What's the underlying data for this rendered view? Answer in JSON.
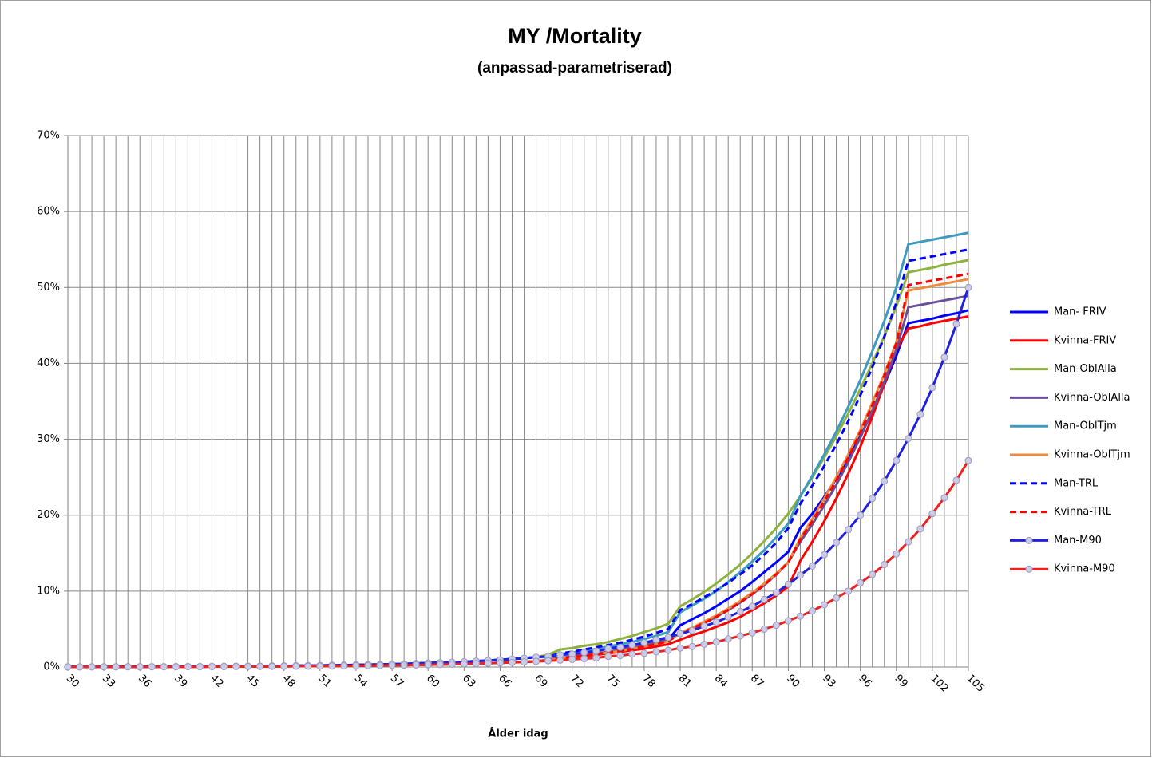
{
  "chart_data": {
    "type": "line",
    "title": "MY /Mortality",
    "subtitle": "(anpassad-parametriserad)",
    "x_label": "Ålder idag",
    "x": [
      30,
      31,
      32,
      33,
      34,
      35,
      36,
      37,
      38,
      39,
      40,
      41,
      42,
      43,
      44,
      45,
      46,
      47,
      48,
      49,
      50,
      51,
      52,
      53,
      54,
      55,
      56,
      57,
      58,
      59,
      60,
      61,
      62,
      63,
      64,
      65,
      66,
      67,
      68,
      69,
      70,
      71,
      72,
      73,
      74,
      75,
      76,
      77,
      78,
      79,
      80,
      81,
      82,
      83,
      84,
      85,
      86,
      87,
      88,
      89,
      90,
      91,
      92,
      93,
      94,
      95,
      96,
      97,
      98,
      99,
      100,
      101,
      102,
      103,
      104,
      105
    ],
    "xlim": [
      30,
      105
    ],
    "xticks": [
      30,
      33,
      36,
      39,
      42,
      45,
      48,
      51,
      54,
      57,
      60,
      63,
      66,
      69,
      72,
      75,
      78,
      81,
      84,
      87,
      90,
      93,
      96,
      99,
      102,
      105
    ],
    "ylim": [
      0,
      70
    ],
    "yticks": [
      {
        "value": 0,
        "label": "0%"
      },
      {
        "value": 10,
        "label": "10%"
      },
      {
        "value": 20,
        "label": "20%"
      },
      {
        "value": 30,
        "label": "30%"
      },
      {
        "value": 40,
        "label": "40%"
      },
      {
        "value": 50,
        "label": "50%"
      },
      {
        "value": 60,
        "label": "60%"
      },
      {
        "value": 70,
        "label": "70%"
      }
    ],
    "grid": true,
    "legend": "right",
    "series": [
      {
        "name": "Man- FRIV",
        "color": "#0000ff",
        "style": "solid",
        "values": [
          0.02,
          0.02,
          0.03,
          0.03,
          0.03,
          0.04,
          0.04,
          0.05,
          0.05,
          0.06,
          0.07,
          0.07,
          0.08,
          0.09,
          0.1,
          0.11,
          0.12,
          0.14,
          0.15,
          0.17,
          0.19,
          0.21,
          0.23,
          0.25,
          0.28,
          0.31,
          0.34,
          0.38,
          0.42,
          0.47,
          0.52,
          0.57,
          0.63,
          0.7,
          0.78,
          0.86,
          0.95,
          1.05,
          1.16,
          1.3,
          1.5,
          1.7,
          1.9,
          2.1,
          2.3,
          2.5,
          2.7,
          2.9,
          3.1,
          3.3,
          3.6,
          5.5,
          6.3,
          7.1,
          8.0,
          9.0,
          10.0,
          11.2,
          12.5,
          13.8,
          15.2,
          18.3,
          20.2,
          22.4,
          24.8,
          27.5,
          30.4,
          33.6,
          37.2,
          41.0,
          45.3,
          45.6,
          45.9,
          46.3,
          46.6,
          47.0
        ]
      },
      {
        "name": "Kvinna-FRIV",
        "color": "#ff0000",
        "style": "solid",
        "values": [
          0.01,
          0.01,
          0.01,
          0.02,
          0.02,
          0.02,
          0.02,
          0.03,
          0.03,
          0.03,
          0.04,
          0.04,
          0.05,
          0.05,
          0.06,
          0.07,
          0.07,
          0.08,
          0.09,
          0.1,
          0.11,
          0.12,
          0.13,
          0.15,
          0.16,
          0.18,
          0.2,
          0.22,
          0.25,
          0.27,
          0.3,
          0.33,
          0.37,
          0.41,
          0.45,
          0.5,
          0.55,
          0.61,
          0.67,
          0.74,
          0.8,
          1.0,
          1.2,
          1.4,
          1.6,
          1.8,
          2.0,
          2.2,
          2.4,
          2.7,
          3.0,
          3.6,
          4.2,
          4.7,
          5.3,
          5.9,
          6.6,
          7.5,
          8.4,
          9.4,
          10.6,
          14.0,
          16.5,
          19.2,
          22.2,
          25.5,
          29.0,
          33.0,
          37.3,
          41.8,
          44.6,
          44.9,
          45.3,
          45.6,
          45.9,
          46.2
        ]
      },
      {
        "name": "Man-OblAlla",
        "color": "#8db33e",
        "style": "solid",
        "values": [
          0.02,
          0.02,
          0.03,
          0.03,
          0.03,
          0.04,
          0.04,
          0.05,
          0.05,
          0.06,
          0.07,
          0.07,
          0.08,
          0.09,
          0.1,
          0.11,
          0.12,
          0.14,
          0.15,
          0.17,
          0.19,
          0.21,
          0.23,
          0.25,
          0.28,
          0.31,
          0.34,
          0.38,
          0.42,
          0.47,
          0.52,
          0.57,
          0.63,
          0.7,
          0.78,
          0.86,
          0.95,
          1.05,
          1.16,
          1.3,
          1.6,
          2.3,
          2.5,
          2.8,
          3.0,
          3.3,
          3.7,
          4.1,
          4.6,
          5.1,
          5.7,
          8.0,
          8.9,
          9.9,
          11.0,
          12.2,
          13.5,
          15.0,
          16.6,
          18.3,
          20.2,
          22.5,
          25.0,
          27.6,
          30.4,
          33.4,
          36.6,
          40.0,
          43.6,
          47.5,
          52.0,
          52.3,
          52.6,
          53.0,
          53.3,
          53.6
        ]
      },
      {
        "name": "Kvinna-OblAlla",
        "color": "#6a4f96",
        "style": "solid",
        "values": [
          0.01,
          0.01,
          0.01,
          0.02,
          0.02,
          0.02,
          0.02,
          0.03,
          0.03,
          0.03,
          0.04,
          0.04,
          0.05,
          0.05,
          0.06,
          0.07,
          0.07,
          0.08,
          0.09,
          0.1,
          0.11,
          0.12,
          0.13,
          0.15,
          0.16,
          0.18,
          0.2,
          0.22,
          0.25,
          0.27,
          0.3,
          0.33,
          0.37,
          0.41,
          0.45,
          0.5,
          0.55,
          0.61,
          0.67,
          0.74,
          1.0,
          1.2,
          1.4,
          1.6,
          1.8,
          2.0,
          2.3,
          2.6,
          2.9,
          3.2,
          3.6,
          4.5,
          5.1,
          5.8,
          6.6,
          7.5,
          8.5,
          9.6,
          10.8,
          12.2,
          13.8,
          16.5,
          18.8,
          21.3,
          24.0,
          27.0,
          30.2,
          33.8,
          37.6,
          41.8,
          47.4,
          47.7,
          48.0,
          48.3,
          48.6,
          48.9
        ]
      },
      {
        "name": "Man-OblTjm",
        "color": "#3d9bbf",
        "style": "solid",
        "values": [
          0.02,
          0.02,
          0.03,
          0.03,
          0.03,
          0.04,
          0.04,
          0.05,
          0.05,
          0.06,
          0.07,
          0.07,
          0.08,
          0.09,
          0.1,
          0.11,
          0.12,
          0.14,
          0.15,
          0.17,
          0.19,
          0.21,
          0.23,
          0.25,
          0.28,
          0.31,
          0.34,
          0.38,
          0.42,
          0.47,
          0.52,
          0.57,
          0.63,
          0.7,
          0.78,
          0.86,
          0.95,
          1.05,
          1.16,
          1.3,
          1.3,
          1.7,
          1.9,
          2.1,
          2.4,
          2.7,
          3.0,
          3.3,
          3.7,
          4.1,
          4.6,
          7.2,
          8.1,
          9.0,
          10.0,
          11.2,
          12.5,
          13.9,
          15.4,
          17.1,
          18.9,
          22.5,
          25.2,
          28.0,
          31.0,
          34.3,
          37.8,
          41.6,
          45.6,
          50.0,
          55.7,
          56.0,
          56.3,
          56.6,
          56.9,
          57.2
        ]
      },
      {
        "name": "Kvinna-OblTjm",
        "color": "#ee8a3c",
        "style": "solid",
        "values": [
          0.01,
          0.01,
          0.01,
          0.02,
          0.02,
          0.02,
          0.02,
          0.03,
          0.03,
          0.03,
          0.04,
          0.04,
          0.05,
          0.05,
          0.06,
          0.07,
          0.07,
          0.08,
          0.09,
          0.1,
          0.11,
          0.12,
          0.13,
          0.15,
          0.16,
          0.18,
          0.2,
          0.22,
          0.25,
          0.27,
          0.3,
          0.33,
          0.37,
          0.41,
          0.45,
          0.5,
          0.55,
          0.61,
          0.67,
          0.74,
          0.9,
          1.1,
          1.3,
          1.5,
          1.7,
          1.9,
          2.1,
          2.4,
          2.7,
          3.0,
          3.4,
          4.5,
          5.2,
          6.0,
          6.8,
          7.7,
          8.7,
          9.8,
          11.0,
          12.3,
          13.8,
          17.0,
          19.5,
          22.2,
          25.0,
          28.0,
          31.2,
          34.8,
          38.6,
          42.8,
          49.6,
          49.9,
          50.2,
          50.5,
          50.8,
          51.1
        ]
      },
      {
        "name": "Man-TRL",
        "color": "#0000ff",
        "style": "dashed",
        "values": [
          0.02,
          0.02,
          0.03,
          0.03,
          0.03,
          0.04,
          0.04,
          0.05,
          0.05,
          0.06,
          0.07,
          0.07,
          0.08,
          0.09,
          0.1,
          0.11,
          0.12,
          0.14,
          0.15,
          0.17,
          0.19,
          0.21,
          0.23,
          0.25,
          0.28,
          0.31,
          0.34,
          0.38,
          0.42,
          0.47,
          0.52,
          0.57,
          0.63,
          0.7,
          0.78,
          0.86,
          0.95,
          1.05,
          1.16,
          1.3,
          1.4,
          1.8,
          2.0,
          2.3,
          2.6,
          2.9,
          3.2,
          3.6,
          4.0,
          4.5,
          5.0,
          7.5,
          8.3,
          9.2,
          10.1,
          11.1,
          12.2,
          13.4,
          14.8,
          16.4,
          18.3,
          21.5,
          23.9,
          26.5,
          29.3,
          32.4,
          35.8,
          39.5,
          43.5,
          48.0,
          53.5,
          53.8,
          54.1,
          54.4,
          54.7,
          55.0
        ]
      },
      {
        "name": "Kvinna-TRL",
        "color": "#ff0000",
        "style": "dashed",
        "values": [
          0.01,
          0.01,
          0.01,
          0.02,
          0.02,
          0.02,
          0.02,
          0.03,
          0.03,
          0.03,
          0.04,
          0.04,
          0.05,
          0.05,
          0.06,
          0.07,
          0.07,
          0.08,
          0.09,
          0.1,
          0.11,
          0.12,
          0.13,
          0.15,
          0.16,
          0.18,
          0.2,
          0.22,
          0.25,
          0.27,
          0.3,
          0.33,
          0.37,
          0.41,
          0.45,
          0.5,
          0.55,
          0.61,
          0.67,
          0.74,
          0.9,
          1.1,
          1.3,
          1.5,
          1.7,
          1.9,
          2.1,
          2.4,
          2.7,
          3.0,
          3.4,
          4.4,
          5.1,
          5.8,
          6.6,
          7.5,
          8.5,
          9.6,
          10.8,
          12.2,
          13.8,
          16.8,
          19.2,
          21.8,
          24.6,
          27.6,
          30.9,
          34.5,
          38.4,
          42.6,
          50.3,
          50.6,
          50.9,
          51.2,
          51.5,
          51.8
        ]
      },
      {
        "name": "Man-M90",
        "color": "#2020e0",
        "style": "solid",
        "marker": "circle",
        "values": [
          0.02,
          0.02,
          0.03,
          0.03,
          0.03,
          0.04,
          0.04,
          0.05,
          0.05,
          0.06,
          0.07,
          0.07,
          0.08,
          0.09,
          0.1,
          0.11,
          0.12,
          0.14,
          0.15,
          0.17,
          0.19,
          0.21,
          0.23,
          0.25,
          0.28,
          0.31,
          0.34,
          0.38,
          0.42,
          0.47,
          0.52,
          0.57,
          0.63,
          0.7,
          0.78,
          0.86,
          0.95,
          1.05,
          1.16,
          1.3,
          1.4,
          1.6,
          1.7,
          1.9,
          2.1,
          2.4,
          2.6,
          2.9,
          3.2,
          3.6,
          3.9,
          4.4,
          4.8,
          5.4,
          5.9,
          6.6,
          7.3,
          8.0,
          8.9,
          9.8,
          10.9,
          12.1,
          13.3,
          14.8,
          16.4,
          18.1,
          20.0,
          22.2,
          24.5,
          27.2,
          30.1,
          33.3,
          36.8,
          40.8,
          45.2,
          50.0
        ]
      },
      {
        "name": "Kvinna-M90",
        "color": "#ee2020",
        "style": "solid",
        "marker": "circle",
        "values": [
          0.01,
          0.01,
          0.01,
          0.02,
          0.02,
          0.02,
          0.02,
          0.03,
          0.03,
          0.03,
          0.04,
          0.04,
          0.05,
          0.05,
          0.06,
          0.07,
          0.07,
          0.08,
          0.09,
          0.1,
          0.11,
          0.12,
          0.13,
          0.15,
          0.16,
          0.18,
          0.2,
          0.22,
          0.25,
          0.27,
          0.3,
          0.33,
          0.37,
          0.41,
          0.45,
          0.5,
          0.55,
          0.61,
          0.67,
          0.74,
          0.82,
          0.9,
          1.0,
          1.1,
          1.2,
          1.4,
          1.5,
          1.7,
          1.8,
          2.0,
          2.2,
          2.5,
          2.7,
          3.0,
          3.3,
          3.7,
          4.1,
          4.5,
          5.0,
          5.5,
          6.1,
          6.7,
          7.4,
          8.2,
          9.1,
          10.0,
          11.1,
          12.2,
          13.5,
          14.9,
          16.5,
          18.2,
          20.2,
          22.3,
          24.6,
          27.2
        ]
      }
    ]
  }
}
